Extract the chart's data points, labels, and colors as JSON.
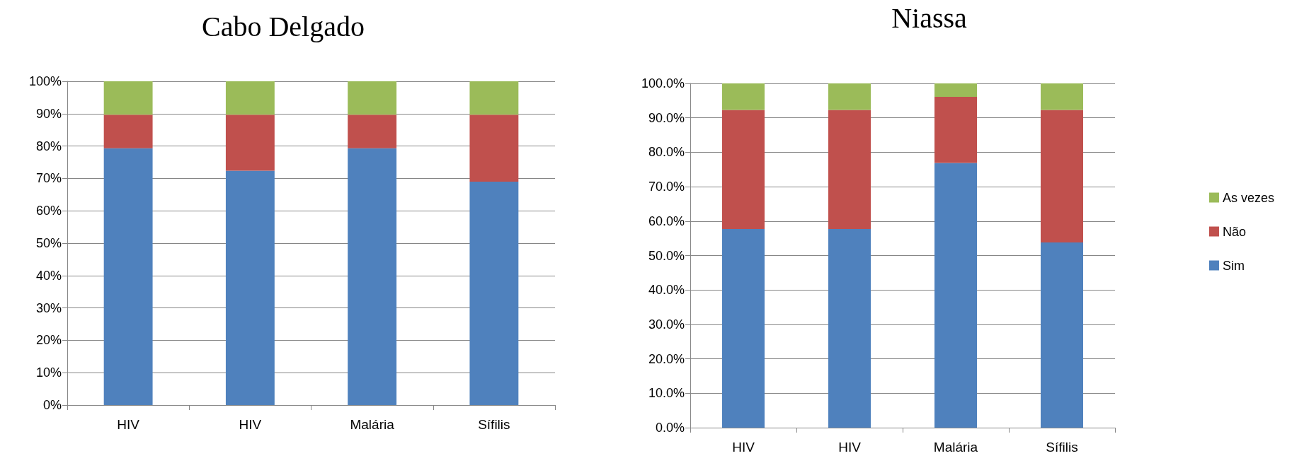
{
  "chart_data": [
    {
      "type": "bar",
      "title": "Cabo Delgado",
      "categories": [
        "HIV",
        "HIV",
        "Malária",
        "Sífilis"
      ],
      "stacked": true,
      "legend": false,
      "grid": "y",
      "ylim": [
        0,
        100
      ],
      "yticks": [
        {
          "value": 0,
          "label": "0%"
        },
        {
          "value": 10,
          "label": "10%"
        },
        {
          "value": 20,
          "label": "20%"
        },
        {
          "value": 30,
          "label": "30%"
        },
        {
          "value": 40,
          "label": "40%"
        },
        {
          "value": 50,
          "label": "50%"
        },
        {
          "value": 60,
          "label": "60%"
        },
        {
          "value": 70,
          "label": "70%"
        },
        {
          "value": 80,
          "label": "80%"
        },
        {
          "value": 90,
          "label": "90%"
        },
        {
          "value": 100,
          "label": "100%"
        }
      ],
      "series": [
        {
          "color": "#4f81bd",
          "values": [
            79.3,
            72.4,
            79.3,
            69.0
          ]
        },
        {
          "color": "#c0504d",
          "values": [
            10.4,
            17.3,
            10.4,
            20.7
          ]
        },
        {
          "color": "#9bbb59",
          "values": [
            10.3,
            10.3,
            10.3,
            10.3
          ]
        }
      ]
    },
    {
      "type": "bar",
      "title": "Niassa",
      "categories": [
        "HIV",
        "HIV",
        "Malária",
        "Sífilis"
      ],
      "stacked": true,
      "legend": "right",
      "grid": "y",
      "ylim": [
        0,
        100
      ],
      "yticks": [
        {
          "value": 0,
          "label": "0.0%"
        },
        {
          "value": 10,
          "label": "10.0%"
        },
        {
          "value": 20,
          "label": "20.0%"
        },
        {
          "value": 30,
          "label": "30.0%"
        },
        {
          "value": 40,
          "label": "40.0%"
        },
        {
          "value": 50,
          "label": "50.0%"
        },
        {
          "value": 60,
          "label": "60.0%"
        },
        {
          "value": 70,
          "label": "70.0%"
        },
        {
          "value": 80,
          "label": "80.0%"
        },
        {
          "value": 90,
          "label": "90.0%"
        },
        {
          "value": 100,
          "label": "100.0%"
        }
      ],
      "series": [
        {
          "name": "Sim",
          "color": "#4f81bd",
          "values": [
            57.7,
            57.7,
            76.9,
            53.8
          ]
        },
        {
          "name": "Não",
          "color": "#c0504d",
          "values": [
            34.6,
            34.6,
            19.2,
            38.5
          ]
        },
        {
          "name": "As vezes",
          "color": "#9bbb59",
          "values": [
            7.7,
            7.7,
            3.9,
            7.7
          ]
        }
      ]
    }
  ]
}
